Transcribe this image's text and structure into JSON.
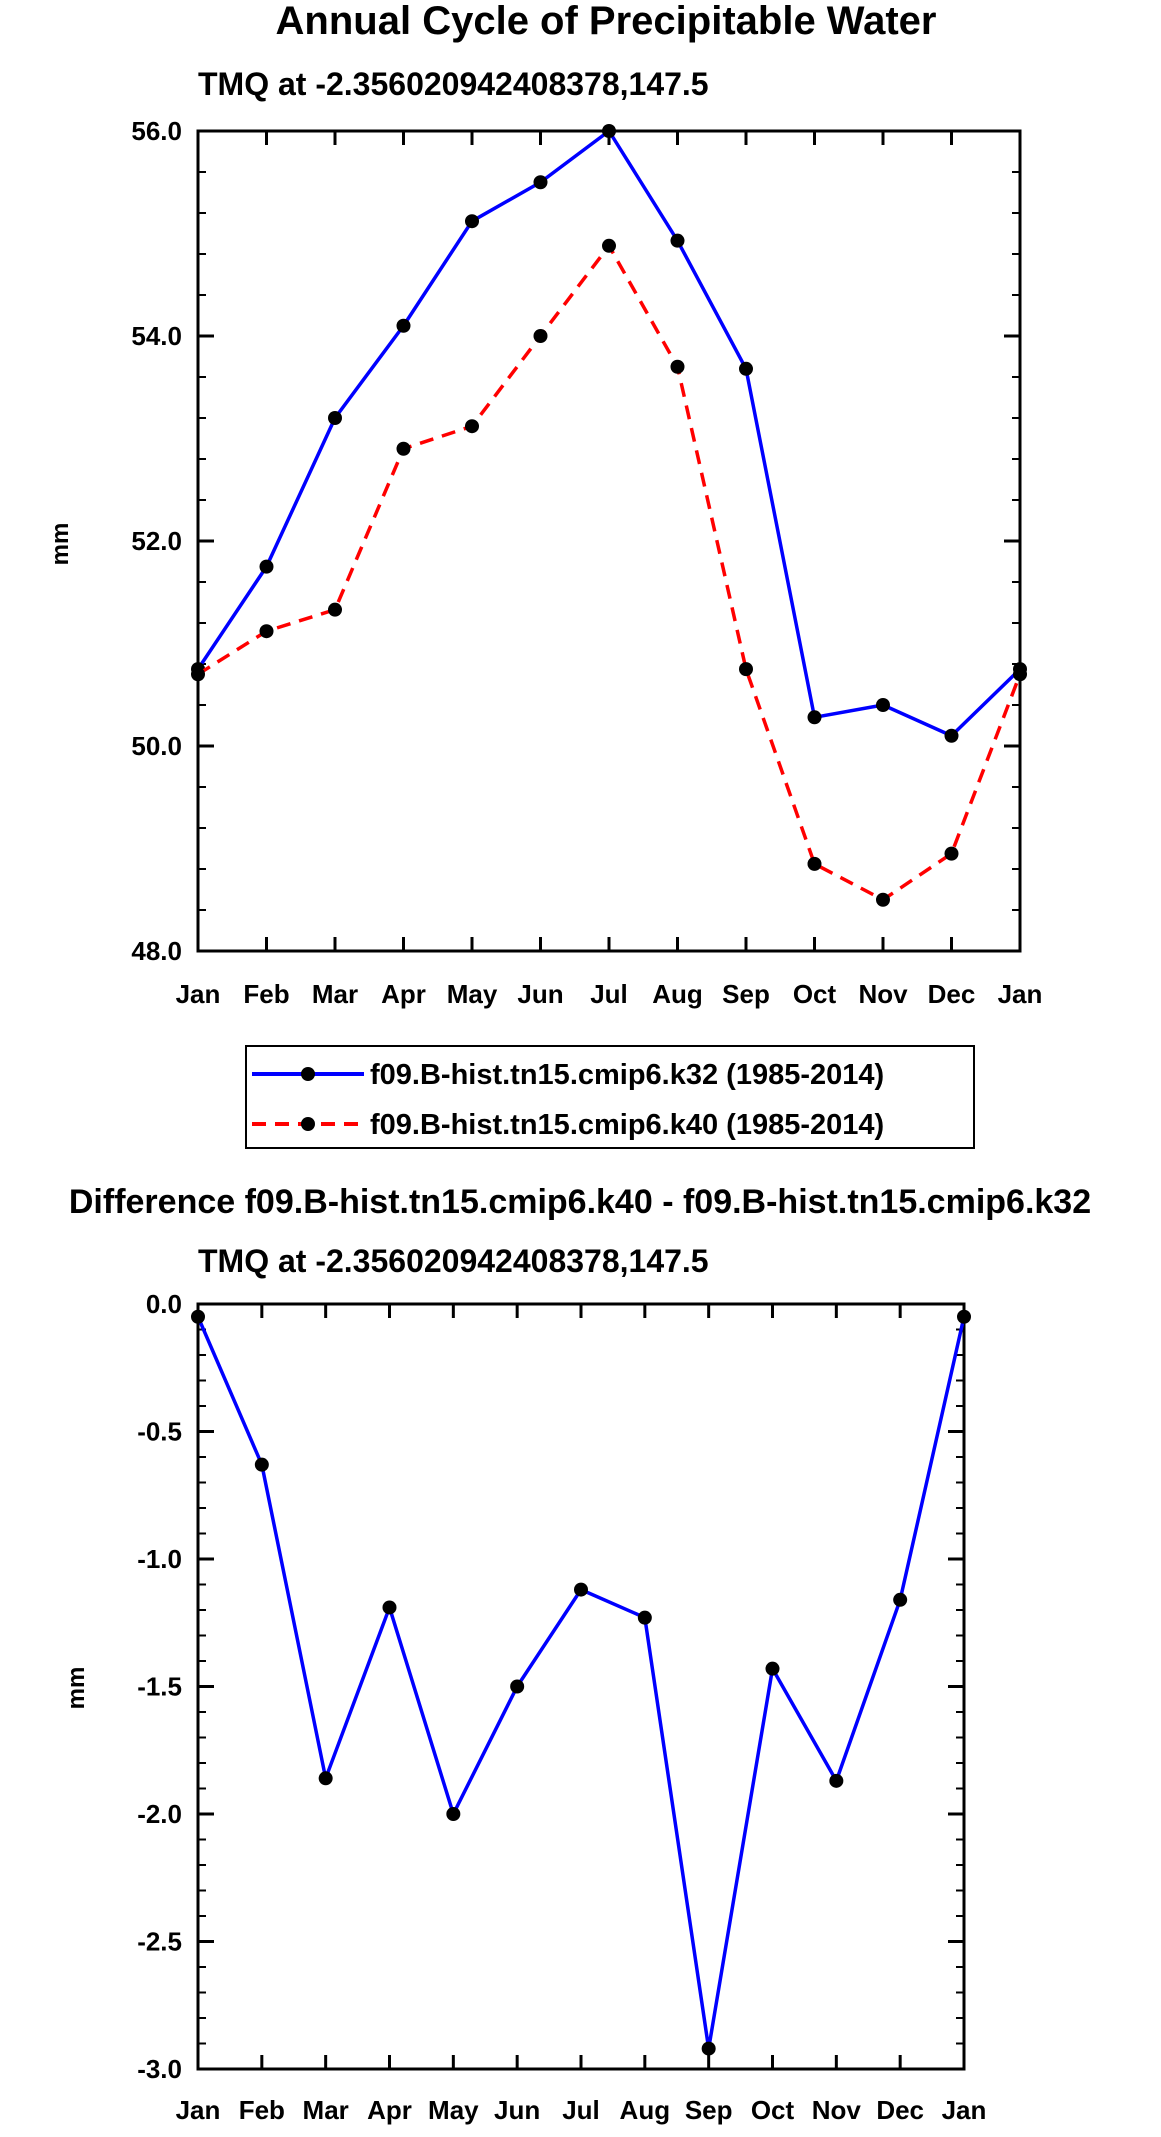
{
  "figure": {
    "title": "Annual Cycle of Precipitable Water",
    "colors": {
      "k32": "#0000ff",
      "k40": "#ff0000",
      "marker": "#000000"
    }
  },
  "chart_data": [
    {
      "type": "line",
      "title": "Annual Cycle of Precipitable Water",
      "subtitle": "TMQ at -2.356020942408378,147.5",
      "xlabel": "",
      "ylabel": "mm",
      "ylim": [
        48.0,
        56.0
      ],
      "yticks": [
        "48.0",
        "50.0",
        "52.0",
        "54.0",
        "56.0"
      ],
      "yticks_values": [
        48,
        50,
        52,
        54,
        56
      ],
      "categories": [
        "Jan",
        "Feb",
        "Mar",
        "Apr",
        "May",
        "Jun",
        "Jul",
        "Aug",
        "Sep",
        "Oct",
        "Nov",
        "Dec",
        "Jan"
      ],
      "series": [
        {
          "name": "f09.B-hist.tn15.cmip6.k32 (1985-2014)",
          "color": "#0000ff",
          "dash": "solid",
          "values": [
            50.75,
            51.75,
            53.2,
            54.1,
            55.12,
            55.5,
            56.0,
            54.93,
            53.68,
            50.28,
            50.4,
            50.1,
            50.75
          ]
        },
        {
          "name": "f09.B-hist.tn15.cmip6.k40 (1985-2014)",
          "color": "#ff0000",
          "dash": "dashed",
          "values": [
            50.7,
            51.12,
            51.33,
            52.9,
            53.12,
            54.0,
            54.88,
            53.7,
            50.75,
            48.85,
            48.5,
            48.95,
            50.7
          ]
        }
      ],
      "legend": [
        "f09.B-hist.tn15.cmip6.k32 (1985-2014)",
        "f09.B-hist.tn15.cmip6.k40 (1985-2014)"
      ]
    },
    {
      "type": "line",
      "title": "Difference f09.B-hist.tn15.cmip6.k40 - f09.B-hist.tn15.cmip6.k32",
      "subtitle": "TMQ at -2.356020942408378,147.5",
      "xlabel": "",
      "ylabel": "mm",
      "ylim": [
        -3.0,
        0.0
      ],
      "yticks": [
        "-3.0",
        "-2.5",
        "-2.0",
        "-1.5",
        "-1.0",
        "-0.5",
        "0.0"
      ],
      "yticks_values": [
        -3.0,
        -2.5,
        -2.0,
        -1.5,
        -1.0,
        -0.5,
        0.0
      ],
      "categories": [
        "Jan",
        "Feb",
        "Mar",
        "Apr",
        "May",
        "Jun",
        "Jul",
        "Aug",
        "Sep",
        "Oct",
        "Nov",
        "Dec",
        "Jan"
      ],
      "series": [
        {
          "name": "difference",
          "color": "#0000ff",
          "dash": "solid",
          "values": [
            -0.05,
            -0.63,
            -1.86,
            -1.19,
            -2.0,
            -1.5,
            -1.12,
            -1.23,
            -2.92,
            -1.43,
            -1.87,
            -1.16,
            -0.05
          ]
        }
      ]
    }
  ]
}
